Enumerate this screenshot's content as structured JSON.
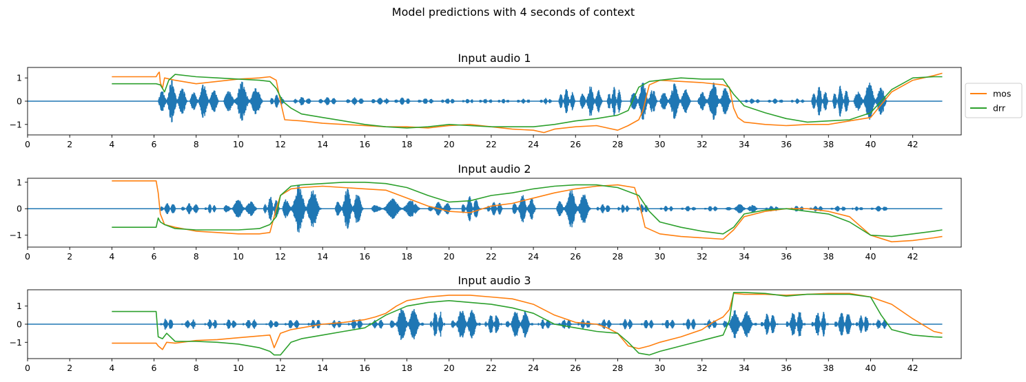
{
  "figure_title": "Model predictions with 4 seconds of context",
  "colors": {
    "waveform": "#1f77b4",
    "mos": "#ff7f0e",
    "drr": "#2ca02c"
  },
  "legend": [
    {
      "name": "mos",
      "color": "#ff7f0e"
    },
    {
      "name": "drr",
      "color": "#2ca02c"
    }
  ],
  "chart_data": [
    {
      "type": "line",
      "title": "Input audio 1",
      "xlim": [
        0,
        44.3
      ],
      "ylim": [
        -1.45,
        1.45
      ],
      "xticks": [
        0,
        2,
        4,
        6,
        8,
        10,
        12,
        14,
        16,
        18,
        20,
        22,
        24,
        26,
        28,
        30,
        32,
        34,
        36,
        38,
        40,
        42
      ],
      "yticks": [
        -1,
        0,
        1
      ],
      "ytick_labels": [
        "−1",
        "0",
        "1"
      ],
      "speech_segments": [
        [
          6.2,
          7.6,
          0.92
        ],
        [
          7.7,
          9.1,
          0.75
        ],
        [
          9.3,
          11.2,
          0.85
        ],
        [
          11.5,
          12.2,
          0.3
        ],
        [
          12.6,
          13.5,
          0.2
        ],
        [
          13.8,
          14.7,
          0.2
        ],
        [
          15.1,
          16.0,
          0.18
        ],
        [
          16.3,
          17.2,
          0.18
        ],
        [
          17.4,
          18.2,
          0.18
        ],
        [
          18.5,
          19.3,
          0.15
        ],
        [
          19.6,
          20.3,
          0.15
        ],
        [
          20.6,
          21.2,
          0.12
        ],
        [
          21.4,
          22.1,
          0.12
        ],
        [
          22.3,
          22.9,
          0.12
        ],
        [
          23.2,
          23.9,
          0.12
        ],
        [
          24.3,
          24.9,
          0.15
        ],
        [
          25.2,
          26.0,
          0.6
        ],
        [
          26.2,
          27.3,
          0.72
        ],
        [
          27.5,
          28.2,
          0.72
        ],
        [
          28.6,
          29.9,
          0.85
        ],
        [
          30.0,
          31.5,
          0.78
        ],
        [
          31.8,
          33.4,
          0.85
        ],
        [
          34.0,
          34.8,
          0.12
        ],
        [
          35.1,
          35.9,
          0.12
        ],
        [
          36.2,
          36.9,
          0.12
        ],
        [
          37.2,
          38.0,
          0.7
        ],
        [
          38.2,
          39.0,
          0.72
        ],
        [
          39.2,
          40.8,
          0.88
        ]
      ],
      "series": [
        {
          "name": "mos",
          "x": [
            4.0,
            6.1,
            6.2,
            6.25,
            6.3,
            6.4,
            6.5,
            7.0,
            8.0,
            9.0,
            10.0,
            11.0,
            11.5,
            11.8,
            12.0,
            12.2,
            13.0,
            14.0,
            15.0,
            16.0,
            17.0,
            18.0,
            19.0,
            20.0,
            21.0,
            22.0,
            23.0,
            24.0,
            24.5,
            25.0,
            26.0,
            27.0,
            28.0,
            28.5,
            29.0,
            29.2,
            29.5,
            30.0,
            31.0,
            32.0,
            33.0,
            33.3,
            33.5,
            33.7,
            34.0,
            35.0,
            36.0,
            37.0,
            38.0,
            39.0,
            40.0,
            41.0,
            42.0,
            43.0,
            43.4
          ],
          "y": [
            1.05,
            1.05,
            1.2,
            1.25,
            0.8,
            0.55,
            1.0,
            0.9,
            0.75,
            0.85,
            0.95,
            1.0,
            1.05,
            0.9,
            0.0,
            -0.8,
            -0.85,
            -0.95,
            -1.0,
            -1.05,
            -1.1,
            -1.1,
            -1.15,
            -1.05,
            -1.0,
            -1.1,
            -1.2,
            -1.25,
            -1.35,
            -1.2,
            -1.1,
            -1.05,
            -1.25,
            -1.05,
            -0.8,
            -0.4,
            0.7,
            0.9,
            0.85,
            0.8,
            0.7,
            0.6,
            -0.3,
            -0.7,
            -0.9,
            -1.0,
            -1.05,
            -1.0,
            -1.0,
            -0.85,
            -0.7,
            0.4,
            0.9,
            1.1,
            1.2
          ]
        },
        {
          "name": "drr",
          "x": [
            4.0,
            6.1,
            6.3,
            6.5,
            6.7,
            7.0,
            8.0,
            9.0,
            10.0,
            11.0,
            11.5,
            11.8,
            12.1,
            12.5,
            13.0,
            14.0,
            15.0,
            16.0,
            17.0,
            18.0,
            19.0,
            20.0,
            21.0,
            22.0,
            23.0,
            24.0,
            25.0,
            26.0,
            27.0,
            28.0,
            28.5,
            29.0,
            29.5,
            30.0,
            31.0,
            32.0,
            33.0,
            33.5,
            34.0,
            35.0,
            36.0,
            37.0,
            38.0,
            39.0,
            40.0,
            41.0,
            42.0,
            43.0,
            43.4
          ],
          "y": [
            0.75,
            0.75,
            0.7,
            0.4,
            0.9,
            1.15,
            1.05,
            1.0,
            0.95,
            0.9,
            0.85,
            0.55,
            0.0,
            -0.3,
            -0.55,
            -0.7,
            -0.85,
            -1.0,
            -1.1,
            -1.15,
            -1.1,
            -1.0,
            -1.05,
            -1.1,
            -1.1,
            -1.1,
            -1.0,
            -0.85,
            -0.75,
            -0.6,
            -0.4,
            0.6,
            0.85,
            0.9,
            1.0,
            0.95,
            0.95,
            0.3,
            -0.2,
            -0.5,
            -0.75,
            -0.9,
            -0.85,
            -0.8,
            -0.5,
            0.5,
            1.0,
            1.05,
            1.05
          ]
        }
      ]
    },
    {
      "type": "line",
      "title": "Input audio 2",
      "xlim": [
        0,
        44.3
      ],
      "ylim": [
        -1.45,
        1.15
      ],
      "xticks": [
        0,
        2,
        4,
        6,
        8,
        10,
        12,
        14,
        16,
        18,
        20,
        22,
        24,
        26,
        28,
        30,
        32,
        34,
        36,
        38,
        40,
        42
      ],
      "yticks": [
        -1,
        0,
        1
      ],
      "ytick_labels": [
        "−1",
        "0",
        "1"
      ],
      "speech_segments": [
        [
          6.3,
          7.1,
          0.25
        ],
        [
          7.3,
          8.2,
          0.22
        ],
        [
          8.4,
          9.0,
          0.18
        ],
        [
          9.3,
          11.0,
          0.38
        ],
        [
          11.2,
          12.0,
          0.5
        ],
        [
          12.1,
          14.0,
          0.95
        ],
        [
          14.6,
          16.0,
          0.8
        ],
        [
          16.3,
          18.8,
          0.4
        ],
        [
          19.0,
          20.2,
          0.28
        ],
        [
          20.6,
          21.5,
          0.5
        ],
        [
          21.8,
          22.6,
          0.3
        ],
        [
          23.0,
          24.2,
          0.55
        ],
        [
          25.1,
          26.8,
          0.75
        ],
        [
          27.0,
          27.7,
          0.2
        ],
        [
          28.0,
          28.6,
          0.18
        ],
        [
          28.9,
          29.5,
          0.2
        ],
        [
          30.0,
          30.7,
          0.12
        ],
        [
          31.0,
          31.8,
          0.12
        ],
        [
          32.1,
          32.8,
          0.12
        ],
        [
          33.1,
          34.8,
          0.18
        ],
        [
          35.0,
          35.7,
          0.12
        ],
        [
          36.2,
          36.9,
          0.12
        ],
        [
          37.1,
          37.8,
          0.12
        ],
        [
          38.1,
          38.9,
          0.12
        ],
        [
          39.1,
          39.7,
          0.1
        ],
        [
          40.0,
          40.9,
          0.12
        ]
      ],
      "series": [
        {
          "name": "mos",
          "x": [
            4.0,
            6.1,
            6.2,
            6.3,
            6.5,
            7.0,
            8.0,
            9.0,
            10.0,
            11.0,
            11.5,
            11.8,
            12.0,
            12.5,
            13.0,
            14.0,
            15.0,
            16.0,
            17.0,
            18.0,
            19.0,
            20.0,
            21.0,
            22.0,
            23.0,
            24.0,
            25.0,
            26.0,
            27.0,
            28.0,
            28.8,
            29.0,
            29.3,
            30.0,
            31.0,
            32.0,
            33.0,
            33.5,
            34.0,
            35.0,
            36.0,
            37.0,
            38.0,
            39.0,
            40.0,
            41.0,
            42.0,
            43.0,
            43.4
          ],
          "y": [
            1.05,
            1.05,
            0.6,
            -0.2,
            -0.6,
            -0.7,
            -0.85,
            -0.9,
            -0.95,
            -0.95,
            -0.9,
            0.0,
            0.5,
            0.75,
            0.8,
            0.85,
            0.8,
            0.75,
            0.7,
            0.4,
            0.1,
            -0.1,
            -0.15,
            0.1,
            0.2,
            0.4,
            0.6,
            0.75,
            0.85,
            0.9,
            0.8,
            0.3,
            -0.7,
            -0.95,
            -1.05,
            -1.1,
            -1.15,
            -0.8,
            -0.3,
            -0.1,
            0.0,
            0.0,
            -0.1,
            -0.3,
            -1.0,
            -1.25,
            -1.2,
            -1.1,
            -1.05
          ]
        },
        {
          "name": "drr",
          "x": [
            4.0,
            6.1,
            6.2,
            6.3,
            6.5,
            7.0,
            8.0,
            9.0,
            10.0,
            11.0,
            11.5,
            11.8,
            12.0,
            12.5,
            13.0,
            14.0,
            15.0,
            16.0,
            17.0,
            18.0,
            19.0,
            20.0,
            21.0,
            22.0,
            23.0,
            24.0,
            25.0,
            26.0,
            27.0,
            28.0,
            29.0,
            29.5,
            30.0,
            31.0,
            32.0,
            33.0,
            33.5,
            34.0,
            35.0,
            36.0,
            37.0,
            38.0,
            39.0,
            40.0,
            41.0,
            42.0,
            43.0,
            43.4
          ],
          "y": [
            -0.7,
            -0.7,
            -0.35,
            -0.5,
            -0.6,
            -0.75,
            -0.8,
            -0.8,
            -0.8,
            -0.75,
            -0.6,
            -0.3,
            0.5,
            0.85,
            0.9,
            0.95,
            1.0,
            1.0,
            0.95,
            0.8,
            0.5,
            0.25,
            0.3,
            0.5,
            0.6,
            0.75,
            0.85,
            0.9,
            0.9,
            0.8,
            0.5,
            -0.1,
            -0.5,
            -0.7,
            -0.85,
            -0.95,
            -0.7,
            -0.2,
            -0.05,
            0.0,
            -0.1,
            -0.2,
            -0.5,
            -1.0,
            -1.05,
            -0.95,
            -0.85,
            -0.8
          ]
        }
      ]
    },
    {
      "type": "line",
      "title": "Input audio 3",
      "xlim": [
        0,
        44.3
      ],
      "ylim": [
        -1.9,
        1.9
      ],
      "xticks": [
        0,
        2,
        4,
        6,
        8,
        10,
        12,
        14,
        16,
        18,
        20,
        22,
        24,
        26,
        28,
        30,
        32,
        34,
        36,
        38,
        40,
        42
      ],
      "yticks": [
        -1,
        0,
        1
      ],
      "ytick_labels": [
        "−1",
        "0",
        "1"
      ],
      "speech_segments": [
        [
          6.3,
          7.0,
          0.35
        ],
        [
          7.3,
          8.1,
          0.3
        ],
        [
          8.4,
          9.1,
          0.3
        ],
        [
          9.3,
          10.0,
          0.3
        ],
        [
          10.2,
          11.0,
          0.3
        ],
        [
          11.3,
          12.0,
          0.25
        ],
        [
          12.2,
          13.0,
          0.3
        ],
        [
          13.3,
          14.0,
          0.3
        ],
        [
          14.3,
          15.0,
          0.25
        ],
        [
          15.2,
          16.0,
          0.35
        ],
        [
          16.2,
          17.0,
          0.3
        ],
        [
          17.2,
          18.8,
          1.0
        ],
        [
          19.1,
          19.8,
          0.85
        ],
        [
          20.1,
          21.5,
          1.0
        ],
        [
          21.7,
          22.5,
          0.7
        ],
        [
          22.7,
          24.0,
          0.85
        ],
        [
          24.2,
          24.9,
          0.3
        ],
        [
          25.2,
          25.9,
          0.3
        ],
        [
          26.1,
          26.8,
          0.3
        ],
        [
          27.1,
          27.8,
          0.3
        ],
        [
          28.1,
          28.8,
          0.35
        ],
        [
          29.1,
          29.8,
          0.3
        ],
        [
          30.1,
          30.8,
          0.3
        ],
        [
          31.1,
          31.8,
          0.35
        ],
        [
          32.1,
          32.8,
          0.3
        ],
        [
          33.0,
          34.6,
          0.85
        ],
        [
          34.8,
          35.6,
          0.7
        ],
        [
          36.0,
          36.9,
          0.85
        ],
        [
          37.2,
          38.0,
          0.8
        ],
        [
          38.3,
          39.2,
          0.8
        ],
        [
          39.3,
          40.0,
          0.6
        ],
        [
          40.1,
          40.9,
          0.3
        ]
      ],
      "series": [
        {
          "name": "mos",
          "x": [
            4.0,
            6.1,
            6.2,
            6.4,
            6.6,
            7.0,
            8.0,
            9.0,
            10.0,
            11.0,
            11.5,
            11.7,
            12.0,
            12.5,
            13.0,
            14.0,
            15.0,
            16.0,
            16.5,
            17.0,
            17.5,
            18.0,
            19.0,
            20.0,
            21.0,
            22.0,
            23.0,
            24.0,
            25.0,
            26.0,
            27.0,
            27.5,
            28.0,
            28.5,
            29.0,
            29.5,
            30.0,
            31.0,
            32.0,
            32.5,
            33.0,
            33.3,
            33.5,
            34.0,
            35.0,
            36.0,
            37.0,
            38.0,
            39.0,
            40.0,
            41.0,
            42.0,
            43.0,
            43.4
          ],
          "y": [
            -1.05,
            -1.05,
            -1.2,
            -1.4,
            -1.0,
            -1.05,
            -0.9,
            -0.85,
            -0.75,
            -0.65,
            -0.6,
            -1.3,
            -0.5,
            -0.3,
            -0.2,
            0.0,
            0.1,
            0.25,
            0.4,
            0.6,
            1.0,
            1.3,
            1.5,
            1.6,
            1.6,
            1.5,
            1.4,
            1.1,
            0.5,
            0.1,
            0.0,
            -0.2,
            -0.5,
            -1.2,
            -1.35,
            -1.2,
            -1.0,
            -0.7,
            -0.3,
            0.1,
            0.4,
            0.8,
            1.7,
            1.65,
            1.65,
            1.6,
            1.65,
            1.7,
            1.7,
            1.5,
            1.1,
            0.3,
            -0.4,
            -0.5
          ]
        },
        {
          "name": "drr",
          "x": [
            4.0,
            6.1,
            6.2,
            6.4,
            6.6,
            7.0,
            8.0,
            9.0,
            10.0,
            11.0,
            11.5,
            11.7,
            12.0,
            12.5,
            13.0,
            14.0,
            15.0,
            16.0,
            17.0,
            18.0,
            19.0,
            20.0,
            21.0,
            22.0,
            23.0,
            24.0,
            25.0,
            26.0,
            27.0,
            28.0,
            28.5,
            29.0,
            29.5,
            30.0,
            31.0,
            32.0,
            33.0,
            33.3,
            33.5,
            34.0,
            35.0,
            36.0,
            37.0,
            38.0,
            39.0,
            40.0,
            40.5,
            41.0,
            42.0,
            43.0,
            43.4
          ],
          "y": [
            0.7,
            0.7,
            -0.7,
            -0.8,
            -0.5,
            -0.95,
            -0.95,
            -1.0,
            -1.1,
            -1.3,
            -1.5,
            -1.7,
            -1.7,
            -1.0,
            -0.8,
            -0.6,
            -0.4,
            -0.2,
            0.5,
            1.0,
            1.2,
            1.3,
            1.2,
            1.1,
            0.9,
            0.6,
            0.0,
            -0.2,
            -0.4,
            -0.5,
            -1.0,
            -1.6,
            -1.7,
            -1.5,
            -1.2,
            -0.9,
            -0.6,
            0.2,
            1.75,
            1.75,
            1.7,
            1.55,
            1.65,
            1.65,
            1.65,
            1.5,
            0.5,
            -0.3,
            -0.6,
            -0.7,
            -0.72
          ]
        }
      ]
    }
  ]
}
